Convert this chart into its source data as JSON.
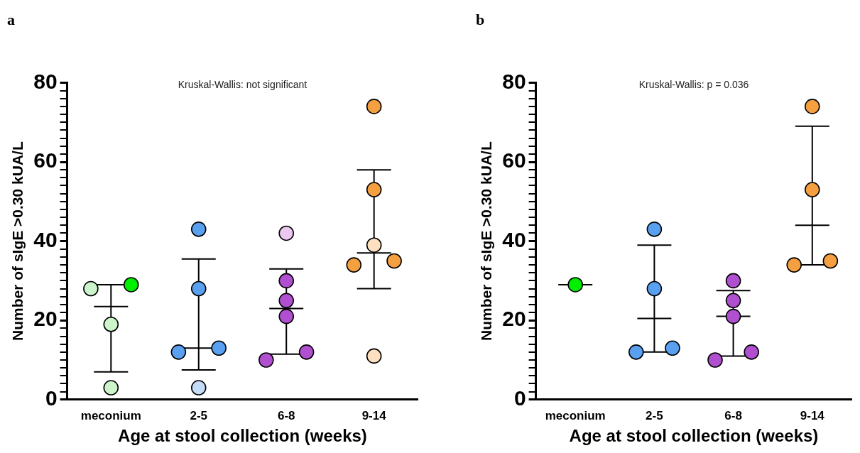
{
  "chart_data": [
    {
      "type": "scatter",
      "title": "a",
      "xlabel": "Age at stool collection (weeks)",
      "ylabel": "Number of sIgE >0.30 kUA/L",
      "categories": [
        "meconium",
        "2-5",
        "6-8",
        "9-14"
      ],
      "ylim": [
        0,
        80
      ],
      "yticks": [
        0,
        {
          "value": 2,
          "label": null
        },
        {
          "value": 4,
          "label": null
        },
        {
          "value": 6,
          "label": null
        },
        {
          "value": 8,
          "label": null
        },
        {
          "value": 10,
          "label": null
        },
        {
          "value": 12,
          "label": null
        },
        {
          "value": 14,
          "label": null
        },
        {
          "value": 16,
          "label": null
        },
        {
          "value": 18,
          "label": null
        },
        20,
        {
          "value": 22,
          "label": null
        },
        {
          "value": 24,
          "label": null
        },
        {
          "value": 26,
          "label": null
        },
        {
          "value": 28,
          "label": null
        },
        {
          "value": 30,
          "label": null
        },
        {
          "value": 32,
          "label": null
        },
        {
          "value": 34,
          "label": null
        },
        {
          "value": 36,
          "label": null
        },
        {
          "value": 38,
          "label": null
        },
        40,
        {
          "value": 42,
          "label": null
        },
        {
          "value": 44,
          "label": null
        },
        {
          "value": 46,
          "label": null
        },
        {
          "value": 48,
          "label": null
        },
        {
          "value": 50,
          "label": null
        },
        {
          "value": 52,
          "label": null
        },
        {
          "value": 54,
          "label": null
        },
        {
          "value": 56,
          "label": null
        },
        {
          "value": 58,
          "label": null
        },
        60,
        {
          "value": 62,
          "label": null
        },
        {
          "value": 64,
          "label": null
        },
        {
          "value": 66,
          "label": null
        },
        {
          "value": 68,
          "label": null
        },
        {
          "value": 70,
          "label": null
        },
        {
          "value": 72,
          "label": null
        },
        {
          "value": 74,
          "label": null
        },
        {
          "value": 76,
          "label": null
        },
        {
          "value": 78,
          "label": null
        },
        80
      ],
      "grid": false,
      "legend": false,
      "annotations": [
        "Kruskal-Wallis: not significant"
      ],
      "series": [
        {
          "marker": "circle",
          "x": [
            "meconium",
            "meconium",
            "meconium",
            "meconium",
            "2-5",
            "2-5",
            "2-5",
            "2-5",
            "2-5",
            "6-8",
            "6-8",
            "6-8",
            "6-8",
            "6-8",
            "6-8",
            "9-14",
            "9-14",
            "9-14",
            "9-14",
            "9-14",
            "9-14"
          ],
          "values": [
            28,
            29,
            19,
            3,
            43,
            28,
            13,
            12,
            3,
            42,
            30,
            25,
            21,
            12,
            10,
            74,
            53,
            39,
            35,
            34,
            11
          ],
          "colors": [
            "#ccf5cc",
            "#00ee00",
            "#ccf5cc",
            "#ccf5cc",
            "#5aa0f0",
            "#5aa0f0",
            "#5aa0f0",
            "#5aa0f0",
            "#c5dcf8",
            "#ecc8f0",
            "#b050d0",
            "#b050d0",
            "#b050d0",
            "#b050d0",
            "#b050d0",
            "#f5a040",
            "#f5a040",
            "#fde0c0",
            "#f5a040",
            "#f5a040",
            "#fde0c0"
          ]
        },
        {
          "type": "box",
          "color": "#000000",
          "boxes": [
            {
              "low": 7,
              "q1": 7,
              "median": 23.5,
              "q3": 29,
              "high": 29
            },
            {
              "low": 7.5,
              "q1": 7.5,
              "median": 13,
              "q3": 35.5,
              "high": 35.5
            },
            {
              "low": 11.5,
              "q1": 11.5,
              "median": 23,
              "q3": 33,
              "high": 33
            },
            {
              "low": 28,
              "q1": 28,
              "median": 37,
              "q3": 58,
              "high": 58
            }
          ]
        }
      ]
    },
    {
      "type": "scatter",
      "title": "b",
      "xlabel": "Age at stool collection (weeks)",
      "ylabel": "Number of sIgE >0.30 kUA/L",
      "categories": [
        "meconium",
        "2-5",
        "6-8",
        "9-14"
      ],
      "ylim": [
        0,
        80
      ],
      "yticks": [
        0,
        {
          "value": 2,
          "label": null
        },
        {
          "value": 4,
          "label": null
        },
        {
          "value": 6,
          "label": null
        },
        {
          "value": 8,
          "label": null
        },
        {
          "value": 10,
          "label": null
        },
        {
          "value": 12,
          "label": null
        },
        {
          "value": 14,
          "label": null
        },
        {
          "value": 16,
          "label": null
        },
        {
          "value": 18,
          "label": null
        },
        20,
        {
          "value": 22,
          "label": null
        },
        {
          "value": 24,
          "label": null
        },
        {
          "value": 26,
          "label": null
        },
        {
          "value": 28,
          "label": null
        },
        {
          "value": 30,
          "label": null
        },
        {
          "value": 32,
          "label": null
        },
        {
          "value": 34,
          "label": null
        },
        {
          "value": 36,
          "label": null
        },
        {
          "value": 38,
          "label": null
        },
        40,
        {
          "value": 42,
          "label": null
        },
        {
          "value": 44,
          "label": null
        },
        {
          "value": 46,
          "label": null
        },
        {
          "value": 48,
          "label": null
        },
        {
          "value": 50,
          "label": null
        },
        {
          "value": 52,
          "label": null
        },
        {
          "value": 54,
          "label": null
        },
        {
          "value": 56,
          "label": null
        },
        {
          "value": 58,
          "label": null
        },
        60,
        {
          "value": 62,
          "label": null
        },
        {
          "value": 64,
          "label": null
        },
        {
          "value": 66,
          "label": null
        },
        {
          "value": 68,
          "label": null
        },
        {
          "value": 70,
          "label": null
        },
        {
          "value": 72,
          "label": null
        },
        {
          "value": 74,
          "label": null
        },
        {
          "value": 76,
          "label": null
        },
        {
          "value": 78,
          "label": null
        },
        80
      ],
      "grid": false,
      "legend": false,
      "annotations": [
        "Kruskal-Wallis: p = 0.036"
      ],
      "series": [
        {
          "marker": "circle",
          "x": [
            "meconium",
            "2-5",
            "2-5",
            "2-5",
            "2-5",
            "6-8",
            "6-8",
            "6-8",
            "6-8",
            "6-8",
            "9-14",
            "9-14",
            "9-14",
            "9-14"
          ],
          "values": [
            29,
            43,
            28,
            13,
            12,
            30,
            25,
            21,
            12,
            10,
            74,
            53,
            35,
            34
          ],
          "colors": [
            "#00ee00",
            "#5aa0f0",
            "#5aa0f0",
            "#5aa0f0",
            "#5aa0f0",
            "#b050d0",
            "#b050d0",
            "#b050d0",
            "#b050d0",
            "#b050d0",
            "#f5a040",
            "#f5a040",
            "#f5a040",
            "#f5a040"
          ]
        },
        {
          "type": "box",
          "color": "#000000",
          "boxes": [
            {
              "low": 29,
              "q1": 29,
              "median": 29,
              "q3": 29,
              "high": 29
            },
            {
              "low": 12,
              "q1": 12,
              "median": 20.5,
              "q3": 39,
              "high": 39
            },
            {
              "low": 11,
              "q1": 11,
              "median": 21,
              "q3": 27.5,
              "high": 27.5
            },
            {
              "low": 34,
              "q1": 34,
              "median": 44,
              "q3": 69,
              "high": 69
            }
          ]
        }
      ]
    }
  ]
}
